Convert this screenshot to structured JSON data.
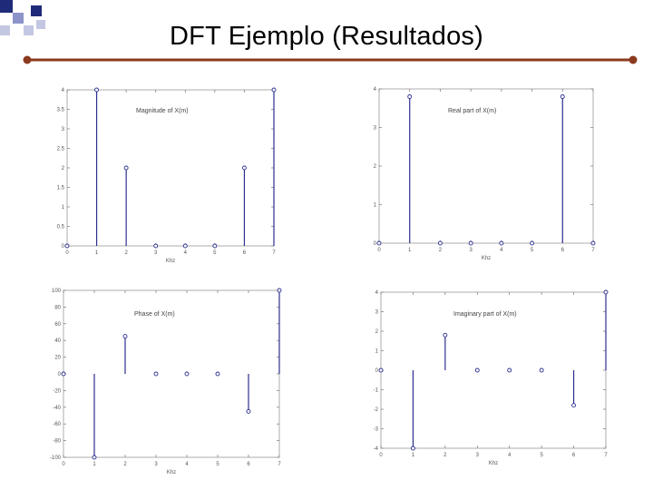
{
  "slide": {
    "title": "DFT  Ejemplo (Resultados)",
    "accent_color": "#8B3A1E",
    "square_colors": [
      "#1f2a78",
      "#8d93c8",
      "#c3c7e2"
    ]
  },
  "chart_data": [
    {
      "id": "magnitude",
      "type": "stem",
      "title": "Magnitude of X(m)",
      "xlabel": "Khz",
      "x": [
        0,
        1,
        2,
        3,
        4,
        5,
        6,
        7
      ],
      "values": [
        0,
        4,
        2,
        0,
        0,
        0,
        2,
        4
      ],
      "xlim": [
        0,
        7
      ],
      "ylim": [
        0,
        4
      ],
      "xticks": [
        "0",
        "1",
        "2",
        "3",
        "4",
        "5",
        "6",
        "7"
      ],
      "yticks": [
        "0",
        "0.5",
        "1",
        "1.5",
        "2",
        "2.5",
        "3",
        "3.5",
        "4"
      ],
      "color": "#2b2f8f"
    },
    {
      "id": "real",
      "type": "stem",
      "title": "Real part of X(m)",
      "xlabel": "Khz",
      "x": [
        0,
        1,
        2,
        3,
        4,
        5,
        6,
        7
      ],
      "values": [
        0,
        3.8,
        0,
        0,
        0,
        0,
        3.8,
        0
      ],
      "xlim": [
        0,
        7
      ],
      "ylim": [
        0,
        4
      ],
      "xticks": [
        "0",
        "1",
        "2",
        "3",
        "4",
        "5",
        "6",
        "7"
      ],
      "yticks": [
        "0",
        "1",
        "2",
        "3",
        "4"
      ],
      "color": "#2b2f8f"
    },
    {
      "id": "phase",
      "type": "stem",
      "title": "Phase of X(m)",
      "xlabel": "Khz",
      "x": [
        0,
        1,
        2,
        3,
        4,
        5,
        6,
        7
      ],
      "values": [
        0,
        -100,
        45,
        0,
        0,
        0,
        -45,
        100
      ],
      "xlim": [
        0,
        7
      ],
      "ylim": [
        -100,
        100
      ],
      "xticks": [
        "0",
        "1",
        "2",
        "3",
        "4",
        "5",
        "6",
        "7"
      ],
      "yticks": [
        "-100",
        "-80",
        "-60",
        "-40",
        "-20",
        "0",
        "20",
        "40",
        "60",
        "80",
        "100"
      ],
      "color": "#2b2f8f"
    },
    {
      "id": "imaginary",
      "type": "stem",
      "title": "Imaginary part of X(m)",
      "xlabel": "Khz",
      "x": [
        0,
        1,
        2,
        3,
        4,
        5,
        6,
        7
      ],
      "values": [
        0,
        -4,
        1.8,
        0,
        0,
        0,
        -1.8,
        4
      ],
      "xlim": [
        0,
        7
      ],
      "ylim": [
        -4,
        4
      ],
      "xticks": [
        "0",
        "1",
        "2",
        "3",
        "4",
        "5",
        "6",
        "7"
      ],
      "yticks": [
        "-4",
        "-3",
        "-2",
        "-1",
        "0",
        "1",
        "2",
        "3",
        "4"
      ],
      "color": "#2b2f8f"
    }
  ]
}
